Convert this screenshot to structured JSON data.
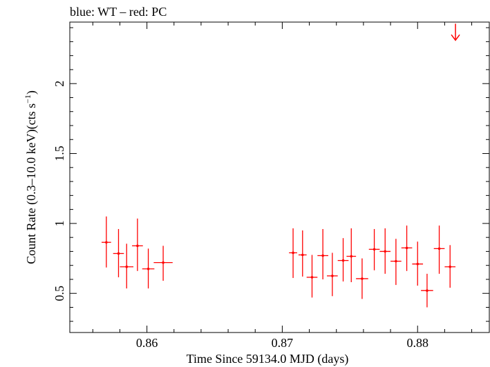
{
  "chart_data": {
    "type": "scatter",
    "title": "blue: WT – red: PC",
    "xlabel": "Time Since 59134.0 MJD (days)",
    "ylabel_main": "Count Rate (0.3–10.0 keV)(cts s",
    "ylabel_sup": "−1",
    "ylabel_close": ")",
    "xlim": [
      0.8543,
      0.8853
    ],
    "ylim": [
      0.22,
      2.44
    ],
    "x_ticks": [
      {
        "value": 0.86,
        "label": "0.86"
      },
      {
        "value": 0.87,
        "label": "0.87"
      },
      {
        "value": 0.88,
        "label": "0.88"
      }
    ],
    "y_ticks": [
      {
        "value": 0.5,
        "label": "0.5"
      },
      {
        "value": 1.0,
        "label": "1"
      },
      {
        "value": 1.5,
        "label": "1.5"
      },
      {
        "value": 2.0,
        "label": "2"
      }
    ],
    "colors": {
      "PC": "#ff0000",
      "WT": "#0000ff",
      "axes": "#000000"
    },
    "series": [
      {
        "name": "PC",
        "color": "#ff0000",
        "points": [
          {
            "x": 0.857,
            "xerr": 0.00035,
            "y": 0.865,
            "ylo": 0.685,
            "yhi": 1.05
          },
          {
            "x": 0.8579,
            "xerr": 0.0004,
            "y": 0.785,
            "ylo": 0.615,
            "yhi": 0.96
          },
          {
            "x": 0.8585,
            "xerr": 0.0005,
            "y": 0.69,
            "ylo": 0.535,
            "yhi": 0.855
          },
          {
            "x": 0.8593,
            "xerr": 0.0004,
            "y": 0.84,
            "ylo": 0.66,
            "yhi": 1.035
          },
          {
            "x": 0.8601,
            "xerr": 0.00045,
            "y": 0.675,
            "ylo": 0.535,
            "yhi": 0.82
          },
          {
            "x": 0.8612,
            "xerr": 0.0007,
            "y": 0.72,
            "ylo": 0.59,
            "yhi": 0.84
          },
          {
            "x": 0.8708,
            "xerr": 0.0003,
            "y": 0.79,
            "ylo": 0.61,
            "yhi": 0.965
          },
          {
            "x": 0.8715,
            "xerr": 0.0003,
            "y": 0.775,
            "ylo": 0.62,
            "yhi": 0.95
          },
          {
            "x": 0.8722,
            "xerr": 0.0004,
            "y": 0.615,
            "ylo": 0.47,
            "yhi": 0.775
          },
          {
            "x": 0.873,
            "xerr": 0.0004,
            "y": 0.77,
            "ylo": 0.6,
            "yhi": 0.96
          },
          {
            "x": 0.8737,
            "xerr": 0.0004,
            "y": 0.625,
            "ylo": 0.48,
            "yhi": 0.79
          },
          {
            "x": 0.8745,
            "xerr": 0.0004,
            "y": 0.735,
            "ylo": 0.585,
            "yhi": 0.895
          },
          {
            "x": 0.8751,
            "xerr": 0.00035,
            "y": 0.765,
            "ylo": 0.58,
            "yhi": 0.965
          },
          {
            "x": 0.8759,
            "xerr": 0.00045,
            "y": 0.605,
            "ylo": 0.46,
            "yhi": 0.75
          },
          {
            "x": 0.8768,
            "xerr": 0.0004,
            "y": 0.815,
            "ylo": 0.665,
            "yhi": 0.96
          },
          {
            "x": 0.8776,
            "xerr": 0.0004,
            "y": 0.8,
            "ylo": 0.64,
            "yhi": 0.965
          },
          {
            "x": 0.8784,
            "xerr": 0.0004,
            "y": 0.73,
            "ylo": 0.56,
            "yhi": 0.89
          },
          {
            "x": 0.8792,
            "xerr": 0.0004,
            "y": 0.825,
            "ylo": 0.66,
            "yhi": 0.985
          },
          {
            "x": 0.88,
            "xerr": 0.0004,
            "y": 0.71,
            "ylo": 0.555,
            "yhi": 0.87
          },
          {
            "x": 0.8807,
            "xerr": 0.00045,
            "y": 0.52,
            "ylo": 0.4,
            "yhi": 0.64
          },
          {
            "x": 0.8816,
            "xerr": 0.0004,
            "y": 0.82,
            "ylo": 0.64,
            "yhi": 0.985
          },
          {
            "x": 0.8824,
            "xerr": 0.0004,
            "y": 0.69,
            "ylo": 0.54,
            "yhi": 0.845
          }
        ],
        "upper_limits": [
          {
            "x": 0.8828,
            "y": 2.31
          }
        ]
      }
    ],
    "grid": false,
    "legend": "none"
  }
}
